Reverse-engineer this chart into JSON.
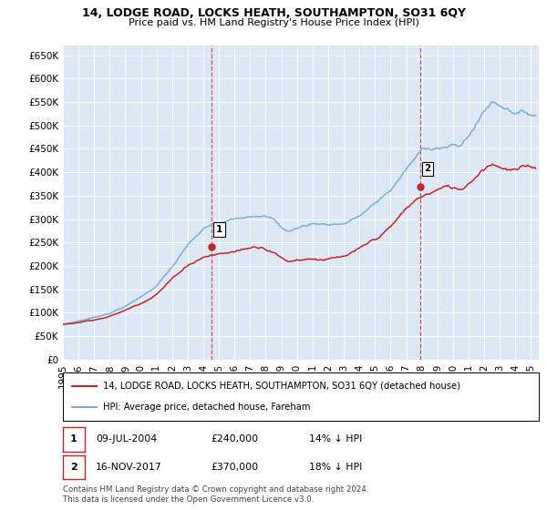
{
  "title": "14, LODGE ROAD, LOCKS HEATH, SOUTHAMPTON, SO31 6QY",
  "subtitle": "Price paid vs. HM Land Registry's House Price Index (HPI)",
  "ylim": [
    0,
    670000
  ],
  "yticks": [
    0,
    50000,
    100000,
    150000,
    200000,
    250000,
    300000,
    350000,
    400000,
    450000,
    500000,
    550000,
    600000,
    650000
  ],
  "xlim_start": 1995.0,
  "xlim_end": 2025.5,
  "hpi_color": "#7aaed6",
  "price_color": "#cc2222",
  "purchase1_x": 2004.52,
  "purchase1_y": 240000,
  "purchase2_x": 2017.88,
  "purchase2_y": 370000,
  "legend_property": "14, LODGE ROAD, LOCKS HEATH, SOUTHAMPTON, SO31 6QY (detached house)",
  "legend_hpi": "HPI: Average price, detached house, Fareham",
  "note1_date": "09-JUL-2004",
  "note1_price": "£240,000",
  "note1_pct": "14% ↓ HPI",
  "note2_date": "16-NOV-2017",
  "note2_price": "£370,000",
  "note2_pct": "18% ↓ HPI",
  "footer": "Contains HM Land Registry data © Crown copyright and database right 2024.\nThis data is licensed under the Open Government Licence v3.0.",
  "bg_color": "#ffffff",
  "plot_bg_color": "#dce8f5"
}
